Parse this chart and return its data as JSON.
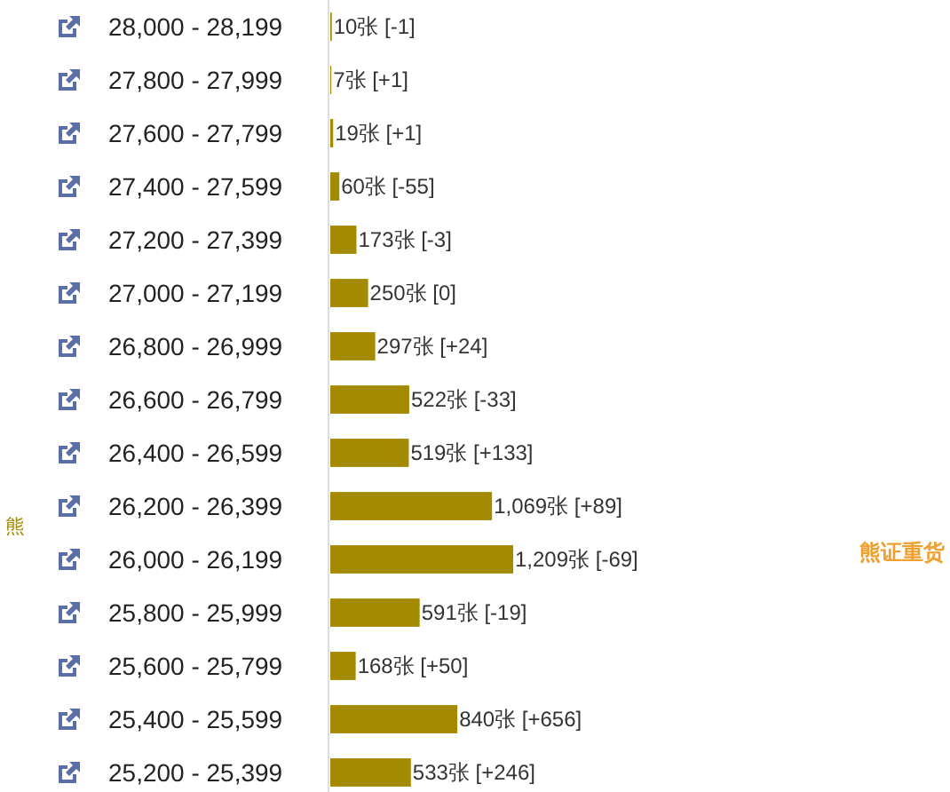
{
  "chart_data": {
    "type": "bar",
    "orientation": "horizontal",
    "categories": [
      "28,000 - 28,199",
      "27,800 - 27,999",
      "27,600 - 27,799",
      "27,400 - 27,599",
      "27,200 - 27,399",
      "27,000 - 27,199",
      "26,800 - 26,999",
      "26,600 - 26,799",
      "26,400 - 26,599",
      "26,200 - 26,399",
      "26,000 - 26,199",
      "25,800 - 25,999",
      "25,600 - 25,799",
      "25,400 - 25,599",
      "25,200 - 25,399"
    ],
    "values": [
      10,
      7,
      19,
      60,
      173,
      250,
      297,
      522,
      519,
      1069,
      1209,
      591,
      168,
      840,
      533
    ],
    "value_labels": [
      "10张 [-1]",
      "7张 [+1]",
      "19张 [+1]",
      "60张 [-55]",
      "173张 [-3]",
      "250张 [0]",
      "297张 [+24]",
      "522张 [-33]",
      "519张 [+133]",
      "1,069张 [+89]",
      "1,209张 [-69]",
      "591张 [-19]",
      "168张 [+50]",
      "840张 [+656]",
      "533张 [+246]"
    ],
    "color": "#a38a00",
    "annotations": [
      "熊",
      "熊证重货"
    ]
  }
}
